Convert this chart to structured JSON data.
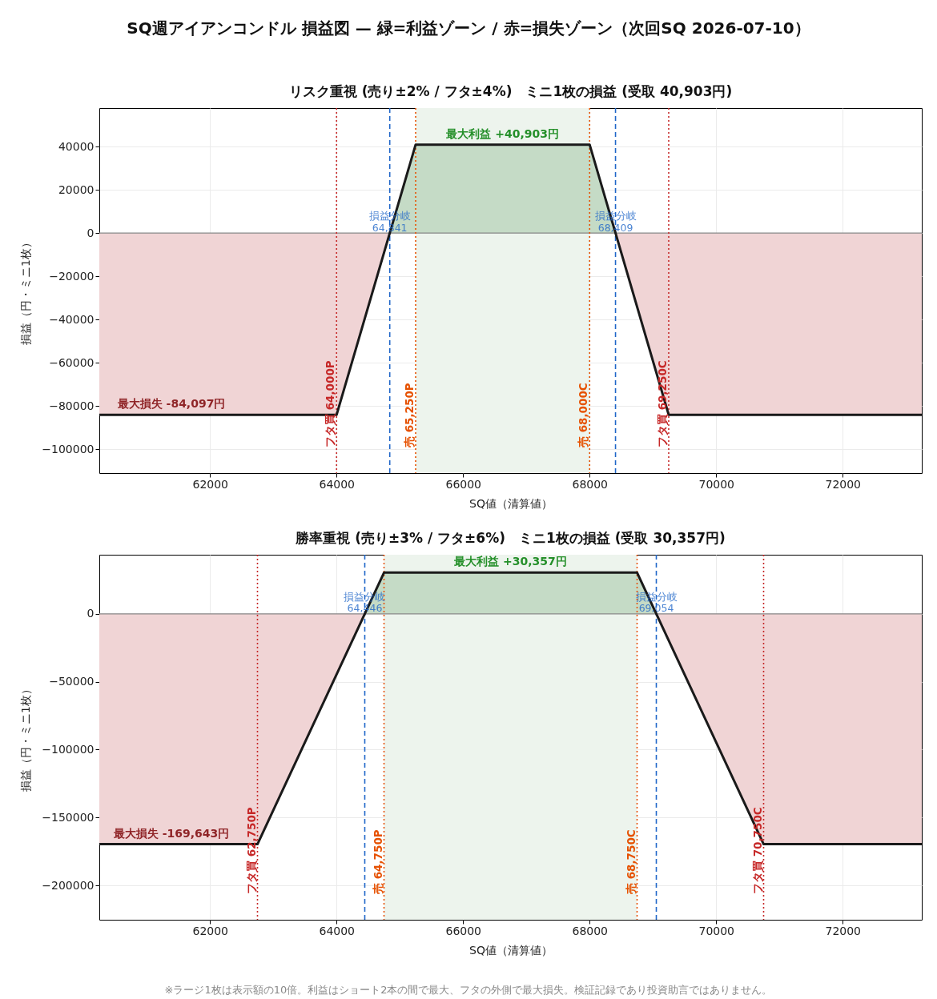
{
  "chart_data": [
    {
      "type": "line",
      "title": "リスク重視 (売り±2% / フタ±4%)　ミニ1枚の損益 (受取 40,903円)",
      "xlabel": "SQ値（清算値）",
      "ylabel": "損益（円・ミニ1枚）",
      "xlim": [
        60250,
        73250
      ],
      "xticks": [
        62000,
        64000,
        66000,
        68000,
        70000,
        72000
      ],
      "ylim": [
        -111000,
        57800
      ],
      "yticks": [
        -100000,
        -80000,
        -60000,
        -40000,
        -20000,
        0,
        20000,
        40000
      ],
      "grid": true,
      "series": [
        {
          "type": "area",
          "color": "#f0d4d5",
          "x": [
            60250,
            64000,
            64841
          ],
          "values": [
            -84097,
            -84097,
            0
          ]
        },
        {
          "type": "area",
          "color": "#f0d4d5",
          "x": [
            68409,
            69250,
            73250
          ],
          "values": [
            0,
            -84097,
            -84097
          ]
        },
        {
          "type": "area",
          "color": "#c5dbc6",
          "x": [
            64841,
            65250,
            68000,
            68409
          ],
          "values": [
            0,
            40903,
            40903,
            0
          ]
        },
        {
          "type": "line",
          "color": "#1a1a1a",
          "x": [
            60250,
            64000,
            65250,
            68000,
            69250,
            73250
          ],
          "values": [
            -84097,
            -84097,
            40903,
            40903,
            -84097,
            -84097
          ]
        }
      ],
      "bands": [
        {
          "axis": "x",
          "from": 65250,
          "to": 68000,
          "color": "#edf4ed"
        }
      ],
      "ref_lines": [
        {
          "axis": "y",
          "value": 0,
          "color": "#888888",
          "line_style": "solid"
        },
        {
          "axis": "x",
          "value": 64000,
          "label": "フタ買 64,000P",
          "color": "#c62828",
          "line_style": "dotted"
        },
        {
          "axis": "x",
          "value": 65250,
          "label": "売 65,250P",
          "color": "#e65100",
          "line_style": "dotted"
        },
        {
          "axis": "x",
          "value": 68000,
          "label": "売 68,000C",
          "color": "#e65100",
          "line_style": "dotted"
        },
        {
          "axis": "x",
          "value": 69250,
          "label": "フタ買 69,250C",
          "color": "#c62828",
          "line_style": "dotted"
        },
        {
          "axis": "x",
          "value": 64841,
          "label": "損益分岐\n64,841",
          "color": "#1f66c8",
          "line_style": "dashed"
        },
        {
          "axis": "x",
          "value": 68409,
          "label": "損益分岐\n68,409",
          "color": "#1f66c8",
          "line_style": "dashed"
        }
      ],
      "annotations": [
        "SQ週アイアンコンドル 損益図 — 緑=利益ゾーン / 赤=損失ゾーン（次回SQ 2026-07-10）",
        {
          "text": "最大利益 +40,903円",
          "x": 66625,
          "y": 40903
        },
        {
          "text": "最大損失 -84,097円",
          "x": 61390,
          "y": -84097
        }
      ]
    },
    {
      "type": "line",
      "title": "勝率重視 (売り±3% / フタ±6%)　ミニ1枚の損益 (受取 30,357円)",
      "xlabel": "SQ値（清算値）",
      "ylabel": "損益（円・ミニ1枚）",
      "xlim": [
        60250,
        73250
      ],
      "xticks": [
        62000,
        64000,
        66000,
        68000,
        70000,
        72000
      ],
      "ylim": [
        -225300,
        43500
      ],
      "yticks": [
        -200000,
        -150000,
        -100000,
        -50000,
        0
      ],
      "grid": true,
      "series": [
        {
          "type": "area",
          "color": "#f0d4d5",
          "x": [
            60250,
            62750,
            64446
          ],
          "values": [
            -169643,
            -169643,
            0
          ]
        },
        {
          "type": "area",
          "color": "#f0d4d5",
          "x": [
            69054,
            70750,
            73250
          ],
          "values": [
            0,
            -169643,
            -169643
          ]
        },
        {
          "type": "area",
          "color": "#c5dbc6",
          "x": [
            64446,
            64750,
            68750,
            69054
          ],
          "values": [
            0,
            30357,
            30357,
            0
          ]
        },
        {
          "type": "line",
          "color": "#1a1a1a",
          "x": [
            60250,
            62750,
            64750,
            68750,
            70750,
            73250
          ],
          "values": [
            -169643,
            -169643,
            30357,
            30357,
            -169643,
            -169643
          ]
        }
      ],
      "bands": [
        {
          "axis": "x",
          "from": 64750,
          "to": 68750,
          "color": "#edf4ed"
        }
      ],
      "ref_lines": [
        {
          "axis": "y",
          "value": 0,
          "color": "#888888",
          "line_style": "solid"
        },
        {
          "axis": "x",
          "value": 62750,
          "label": "フタ買 62,750P",
          "color": "#c62828",
          "line_style": "dotted"
        },
        {
          "axis": "x",
          "value": 64750,
          "label": "売 64,750P",
          "color": "#e65100",
          "line_style": "dotted"
        },
        {
          "axis": "x",
          "value": 68750,
          "label": "売 68,750C",
          "color": "#e65100",
          "line_style": "dotted"
        },
        {
          "axis": "x",
          "value": 70750,
          "label": "フタ買 70,750C",
          "color": "#c62828",
          "line_style": "dotted"
        },
        {
          "axis": "x",
          "value": 64446,
          "label": "損益分岐\n64,446",
          "color": "#1f66c8",
          "line_style": "dashed"
        },
        {
          "axis": "x",
          "value": 69054,
          "label": "損益分岐\n69,054",
          "color": "#1f66c8",
          "line_style": "dashed"
        }
      ],
      "annotations": [
        {
          "text": "最大利益 +30,357円",
          "x": 66750,
          "y": 30357
        },
        {
          "text": "最大損失 -169,643円",
          "x": 61390,
          "y": -169643
        },
        "※ラージ1枚は表示額の10倍。利益はショート2本の間で最大、フタの外側で最大損失。検証記録であり投資助言ではありません。"
      ]
    }
  ]
}
